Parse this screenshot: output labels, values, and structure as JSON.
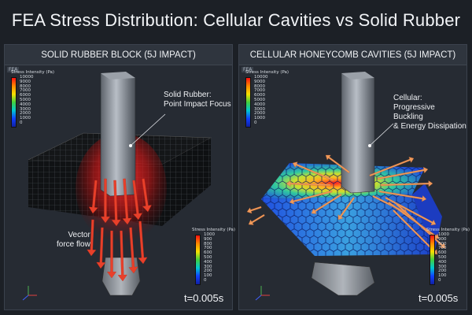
{
  "title": "FEA Stress Distribution: Cellular Cavities vs Solid Rubber",
  "left_panel": {
    "header": "SOLID RUBBER BLOCK (5J IMPACT)",
    "tag": "FEA",
    "legend_top": {
      "title": "Stress Intensity (Pa)",
      "ticks": [
        "10000",
        "9000",
        "8000",
        "7000",
        "6000",
        "5000",
        "4000",
        "3000",
        "2000",
        "1000",
        "0"
      ]
    },
    "legend_bottom": {
      "title": "Stress Intensity (Pa)",
      "ticks": [
        "1000",
        "900",
        "800",
        "700",
        "600",
        "500",
        "400",
        "300",
        "200",
        "100",
        "0"
      ]
    },
    "callout": [
      "Solid Rubber:",
      "Point Impact Focus"
    ],
    "flow_label": [
      "Vector",
      "force flow"
    ],
    "time": "t=0.005s"
  },
  "right_panel": {
    "header": "CELLULAR HONEYCOMB CAVITIES (5J IMPACT)",
    "tag": "FEA",
    "legend_top": {
      "title": "Stress Intensity (Pa)",
      "ticks": [
        "10000",
        "9000",
        "8000",
        "7000",
        "6000",
        "5000",
        "4000",
        "3000",
        "2000",
        "1000",
        "0"
      ]
    },
    "legend_bottom": {
      "title": "Stress Intensity (Pa)",
      "ticks": [
        "1000",
        "900",
        "800",
        "700",
        "600",
        "500",
        "400",
        "300",
        "200",
        "100",
        "0"
      ]
    },
    "callout": [
      "Cellular:",
      "Progressive Buckling",
      "& Energy Dissipation"
    ],
    "time": "t=0.005s"
  },
  "colors": {
    "stress_high": "#ff2a2a",
    "stress_low": "#1a3cff",
    "force_arrow": "#e8502e",
    "spread_arrow": "#f0a060"
  }
}
